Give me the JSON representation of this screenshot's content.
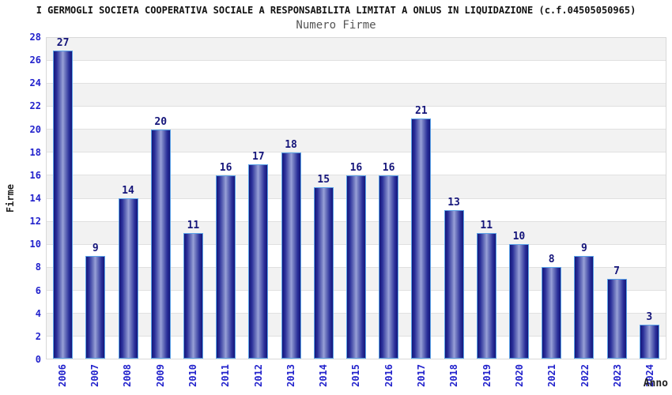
{
  "header": {
    "title": "I GERMOGLI SOCIETA COOPERATIVA SOCIALE A RESPONSABILITA LIMITAT A ONLUS IN LIQUIDAZIONE (c.f.04505050965)",
    "subtitle": "Numero Firme"
  },
  "axes": {
    "x_label": "Anno",
    "y_label": "Firme"
  },
  "chart_data": {
    "type": "bar",
    "title": "I GERMOGLI SOCIETA COOPERATIVA SOCIALE A RESPONSABILITA LIMITAT A ONLUS IN LIQUIDAZIONE (c.f.04505050965)",
    "subtitle": "Numero Firme",
    "xlabel": "Anno",
    "ylabel": "Firme",
    "ylim": [
      0,
      28
    ],
    "ytick_step": 2,
    "grid": true,
    "legend": "none",
    "background_bands": "alternating gray/white every 2 units, top band gray",
    "categories": [
      "2006",
      "2007",
      "2008",
      "2009",
      "2010",
      "2011",
      "2012",
      "2013",
      "2014",
      "2015",
      "2016",
      "2017",
      "2018",
      "2019",
      "2020",
      "2021",
      "2022",
      "2023",
      "2024"
    ],
    "values": [
      27,
      9,
      14,
      20,
      11,
      16,
      17,
      18,
      15,
      16,
      16,
      21,
      13,
      11,
      10,
      8,
      9,
      7,
      3
    ],
    "colors": {
      "tick_blue": "#2222cc",
      "value_label_navy": "#15157a",
      "bar_border_lightblue": "#5ba3e8",
      "bar_edge_dark": "#14177a",
      "bar_center_light": "#99a1d8",
      "band_gray": "#f2f2f2",
      "grid_line": "#e0e0e0",
      "title_text": "#111111",
      "subtitle_text": "#555555"
    }
  }
}
